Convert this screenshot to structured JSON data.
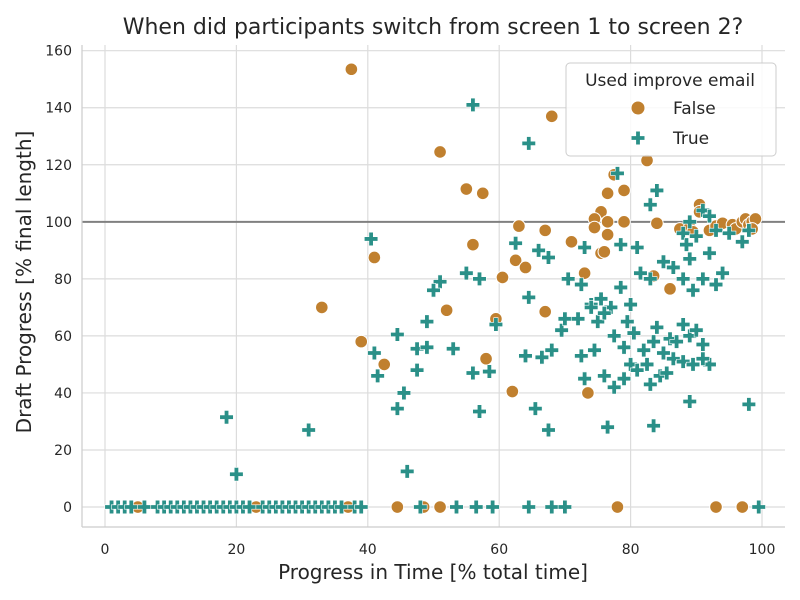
{
  "chart_data": {
    "type": "scatter",
    "title": "When did participants switch from screen 1 to screen 2?",
    "xlabel": "Progress in Time [% total time]",
    "ylabel": "Draft Progress [% final length]",
    "xlim": [
      -3.5,
      103.5
    ],
    "ylim": [
      -7,
      162
    ],
    "xticks": [
      0,
      20,
      40,
      60,
      80,
      100
    ],
    "yticks": [
      0,
      20,
      40,
      60,
      80,
      100,
      120,
      140,
      160
    ],
    "grid": true,
    "reference_line_y": 100,
    "legend": {
      "title": "Used improve email",
      "placement": "top-right"
    },
    "series": [
      {
        "name": "False",
        "marker": "circle",
        "color": "#C0802F",
        "points": [
          [
            37.5,
            153.5
          ],
          [
            68,
            137
          ],
          [
            51,
            124.5
          ],
          [
            55,
            111.5
          ],
          [
            57.5,
            110
          ],
          [
            82.5,
            121.5
          ],
          [
            79,
            111
          ],
          [
            76.5,
            110
          ],
          [
            77.5,
            116.5
          ],
          [
            75.5,
            103.5
          ],
          [
            74.5,
            101
          ],
          [
            76.5,
            100
          ],
          [
            79,
            100
          ],
          [
            84,
            99.5
          ],
          [
            87.5,
            97.5
          ],
          [
            89,
            98
          ],
          [
            90.5,
            106
          ],
          [
            90.5,
            103.5
          ],
          [
            89.5,
            96.5
          ],
          [
            92,
            97
          ],
          [
            93,
            98.5
          ],
          [
            94,
            99.5
          ],
          [
            95.5,
            99
          ],
          [
            96,
            97.5
          ],
          [
            97,
            100
          ],
          [
            97.5,
            101
          ],
          [
            98,
            99
          ],
          [
            98.5,
            100
          ],
          [
            99,
            101
          ],
          [
            98.5,
            97.5
          ],
          [
            74.5,
            98
          ],
          [
            76.5,
            95.5
          ],
          [
            75.5,
            89
          ],
          [
            76,
            89.5
          ],
          [
            71,
            93
          ],
          [
            67,
            97
          ],
          [
            63,
            98.5
          ],
          [
            56,
            92
          ],
          [
            41,
            87.5
          ],
          [
            60.5,
            80.5
          ],
          [
            62.5,
            86.5
          ],
          [
            64,
            84
          ],
          [
            73,
            82
          ],
          [
            86,
            76.5
          ],
          [
            83.5,
            81
          ],
          [
            33,
            70
          ],
          [
            52,
            69
          ],
          [
            59.5,
            66
          ],
          [
            67,
            68.5
          ],
          [
            39,
            58
          ],
          [
            58,
            52
          ],
          [
            42.5,
            50
          ],
          [
            62,
            40.5
          ],
          [
            73.5,
            40
          ],
          [
            5,
            0
          ],
          [
            23,
            0
          ],
          [
            37,
            0
          ],
          [
            44.5,
            0
          ],
          [
            48.5,
            0
          ],
          [
            51,
            0
          ],
          [
            78,
            0
          ],
          [
            93,
            0
          ],
          [
            97,
            0
          ]
        ]
      },
      {
        "name": "True",
        "marker": "plus",
        "color": "#2A9088",
        "points": [
          [
            56,
            141
          ],
          [
            64.5,
            127.5
          ],
          [
            78,
            117
          ],
          [
            84,
            111
          ],
          [
            83,
            106
          ],
          [
            91,
            104
          ],
          [
            92,
            102
          ],
          [
            89,
            100
          ],
          [
            88,
            96
          ],
          [
            90,
            95
          ],
          [
            93,
            97
          ],
          [
            95,
            96
          ],
          [
            97,
            93
          ],
          [
            98,
            97
          ],
          [
            40.5,
            94
          ],
          [
            62.5,
            92.5
          ],
          [
            66,
            90
          ],
          [
            73,
            91
          ],
          [
            78.5,
            92
          ],
          [
            81,
            91
          ],
          [
            88.5,
            92
          ],
          [
            89,
            87
          ],
          [
            92,
            89
          ],
          [
            55,
            82
          ],
          [
            57,
            80
          ],
          [
            51,
            79
          ],
          [
            50,
            76
          ],
          [
            64.5,
            73.5
          ],
          [
            67.5,
            87.5
          ],
          [
            70.5,
            80
          ],
          [
            72.5,
            78
          ],
          [
            74,
            71
          ],
          [
            75.5,
            73
          ],
          [
            77,
            70
          ],
          [
            78.5,
            77
          ],
          [
            80,
            71
          ],
          [
            81.5,
            82
          ],
          [
            83,
            80
          ],
          [
            85,
            86
          ],
          [
            86.5,
            84
          ],
          [
            88,
            80
          ],
          [
            89.5,
            76
          ],
          [
            91,
            80
          ],
          [
            93,
            78
          ],
          [
            94,
            82
          ],
          [
            49,
            65
          ],
          [
            53,
            55.5
          ],
          [
            59.5,
            64
          ],
          [
            64,
            53
          ],
          [
            66.5,
            52.5
          ],
          [
            68,
            55
          ],
          [
            69.5,
            62
          ],
          [
            70,
            66
          ],
          [
            72,
            66
          ],
          [
            74,
            70
          ],
          [
            75,
            65
          ],
          [
            76,
            68
          ],
          [
            77.5,
            60
          ],
          [
            79,
            56
          ],
          [
            79.5,
            65
          ],
          [
            80.5,
            61
          ],
          [
            82,
            55
          ],
          [
            83.5,
            58
          ],
          [
            84,
            63
          ],
          [
            85,
            54
          ],
          [
            86,
            59
          ],
          [
            87,
            58
          ],
          [
            88,
            64
          ],
          [
            89,
            60
          ],
          [
            90,
            62
          ],
          [
            91,
            57
          ],
          [
            92,
            50
          ],
          [
            44.5,
            60.5
          ],
          [
            47.5,
            55.5
          ],
          [
            49,
            56
          ],
          [
            45.5,
            40
          ],
          [
            44.5,
            34.5
          ],
          [
            41,
            54
          ],
          [
            41.5,
            46
          ],
          [
            47.5,
            48
          ],
          [
            56,
            47
          ],
          [
            58.5,
            47.5
          ],
          [
            65.5,
            34.5
          ],
          [
            67.5,
            27
          ],
          [
            72.5,
            53
          ],
          [
            73,
            45
          ],
          [
            74.5,
            55
          ],
          [
            76,
            46
          ],
          [
            77.5,
            42
          ],
          [
            79,
            45
          ],
          [
            80,
            50
          ],
          [
            81,
            48
          ],
          [
            82.5,
            50
          ],
          [
            83,
            43
          ],
          [
            84.5,
            46
          ],
          [
            85.5,
            47
          ],
          [
            86.5,
            52
          ],
          [
            88,
            51
          ],
          [
            89.5,
            50
          ],
          [
            91,
            52
          ],
          [
            76.5,
            28
          ],
          [
            83.5,
            28.5
          ],
          [
            89,
            37
          ],
          [
            98,
            36
          ],
          [
            57,
            33.5
          ],
          [
            18.5,
            31.5
          ],
          [
            31,
            27
          ],
          [
            46,
            12.5
          ],
          [
            20,
            11.5
          ],
          [
            1,
            0
          ],
          [
            2,
            0
          ],
          [
            3,
            0
          ],
          [
            4,
            0
          ],
          [
            6,
            0
          ],
          [
            8,
            0
          ],
          [
            9,
            0
          ],
          [
            10,
            0
          ],
          [
            11,
            0
          ],
          [
            12,
            0
          ],
          [
            13,
            0
          ],
          [
            14,
            0
          ],
          [
            15,
            0
          ],
          [
            16,
            0
          ],
          [
            17,
            0
          ],
          [
            18,
            0
          ],
          [
            19,
            0
          ],
          [
            20,
            0
          ],
          [
            21,
            0
          ],
          [
            22,
            0
          ],
          [
            24,
            0
          ],
          [
            25,
            0
          ],
          [
            26,
            0
          ],
          [
            27,
            0
          ],
          [
            28,
            0
          ],
          [
            29,
            0
          ],
          [
            30,
            0
          ],
          [
            31,
            0
          ],
          [
            32,
            0
          ],
          [
            33,
            0
          ],
          [
            34,
            0
          ],
          [
            35,
            0
          ],
          [
            36,
            0
          ],
          [
            38,
            0
          ],
          [
            39,
            0
          ],
          [
            48,
            0
          ],
          [
            53.5,
            0
          ],
          [
            56.5,
            0
          ],
          [
            59,
            0
          ],
          [
            64.5,
            0
          ],
          [
            68,
            0
          ],
          [
            70,
            0
          ],
          [
            99.5,
            0
          ]
        ]
      }
    ]
  }
}
